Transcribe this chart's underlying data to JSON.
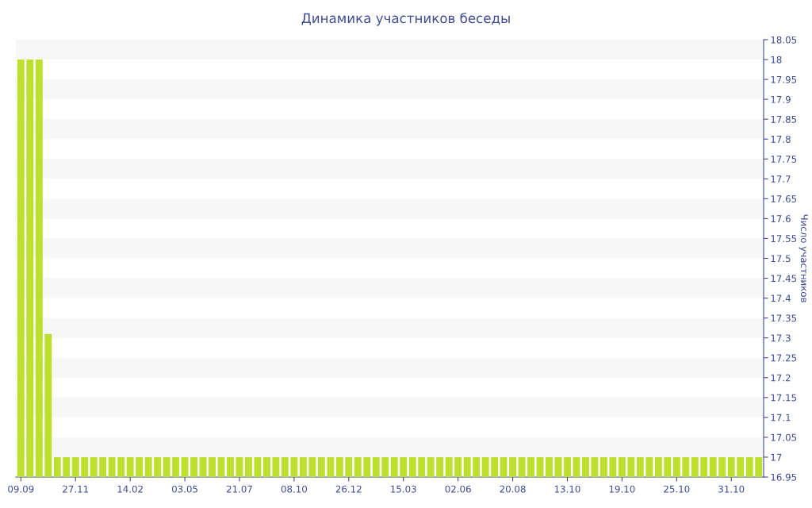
{
  "chart_data": {
    "type": "bar",
    "title": "Динамика участников беседы",
    "ylabel": "Число участников",
    "categories": [
      "09.09",
      null,
      null,
      null,
      null,
      null,
      "27.11",
      null,
      null,
      null,
      null,
      null,
      "14.02",
      null,
      null,
      null,
      null,
      null,
      "03.05",
      null,
      null,
      null,
      null,
      null,
      "21.07",
      null,
      null,
      null,
      null,
      null,
      "08.10",
      null,
      null,
      null,
      null,
      null,
      "26.12",
      null,
      null,
      null,
      null,
      null,
      "15.03",
      null,
      null,
      null,
      null,
      null,
      "02.06",
      null,
      null,
      null,
      null,
      null,
      "20.08",
      null,
      null,
      null,
      null,
      null,
      "13.10",
      null,
      null,
      null,
      null,
      null,
      "19.10",
      null,
      null,
      null,
      null,
      null,
      "25.10",
      null,
      null,
      null,
      null,
      null,
      "31.10",
      null,
      null,
      null
    ],
    "values": [
      18,
      18,
      18,
      17.31,
      17,
      17,
      17,
      17,
      17,
      17,
      17,
      17,
      17,
      17,
      17,
      17,
      17,
      17,
      17,
      17,
      17,
      17,
      17,
      17,
      17,
      17,
      17,
      17,
      17,
      17,
      17,
      17,
      17,
      17,
      17,
      17,
      17,
      17,
      17,
      17,
      17,
      17,
      17,
      17,
      17,
      17,
      17,
      17,
      17,
      17,
      17,
      17,
      17,
      17,
      17,
      17,
      17,
      17,
      17,
      17,
      17,
      17,
      17,
      17,
      17,
      17,
      17,
      17,
      17,
      17,
      17,
      17,
      17,
      17,
      17,
      17,
      17,
      17,
      17,
      17,
      17,
      17
    ],
    "color": "#bde02f",
    "ylim": [
      16.95,
      18.05
    ],
    "yticks": [
      16.95,
      17,
      17.05,
      17.1,
      17.15,
      17.2,
      17.25,
      17.3,
      17.35,
      17.4,
      17.45,
      17.5,
      17.55,
      17.6,
      17.65,
      17.7,
      17.75,
      17.8,
      17.85,
      17.9,
      17.95,
      18,
      18.05
    ],
    "bands": [
      {
        "axis": "y",
        "from": 18,
        "to": 18.05,
        "color": "#f7f7f7"
      },
      {
        "axis": "y",
        "from": 17.9,
        "to": 17.95,
        "color": "#f7f7f7"
      },
      {
        "axis": "y",
        "from": 17.8,
        "to": 17.85,
        "color": "#f7f7f7"
      },
      {
        "axis": "y",
        "from": 17.7,
        "to": 17.75,
        "color": "#f7f7f7"
      },
      {
        "axis": "y",
        "from": 17.6,
        "to": 17.65,
        "color": "#f7f7f7"
      },
      {
        "axis": "y",
        "from": 17.5,
        "to": 17.55,
        "color": "#f7f7f7"
      },
      {
        "axis": "y",
        "from": 17.4,
        "to": 17.45,
        "color": "#f7f7f7"
      },
      {
        "axis": "y",
        "from": 17.3,
        "to": 17.35,
        "color": "#f7f7f7"
      },
      {
        "axis": "y",
        "from": 17.2,
        "to": 17.25,
        "color": "#f7f7f7"
      },
      {
        "axis": "y",
        "from": 17.1,
        "to": 17.15,
        "color": "#f7f7f7"
      },
      {
        "axis": "y",
        "from": 17,
        "to": 17.05,
        "color": "#f7f7f7"
      }
    ]
  }
}
